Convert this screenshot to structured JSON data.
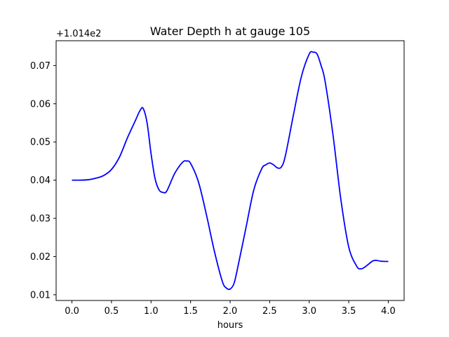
{
  "chart_data": {
    "type": "line",
    "title": "Water Depth h at gauge 105",
    "xlabel": "hours",
    "ylabel": "",
    "offset_label": "+1.014e2",
    "xlim": [
      -0.2,
      4.2
    ],
    "ylim": [
      0.0085,
      0.0765
    ],
    "x_ticks": [
      0.0,
      0.5,
      1.0,
      1.5,
      2.0,
      2.5,
      3.0,
      3.5,
      4.0
    ],
    "x_tick_labels": [
      "0.0",
      "0.5",
      "1.0",
      "1.5",
      "2.0",
      "2.5",
      "3.0",
      "3.5",
      "4.0"
    ],
    "y_ticks": [
      0.01,
      0.02,
      0.03,
      0.04,
      0.05,
      0.06,
      0.07
    ],
    "y_tick_labels": [
      "0.01",
      "0.02",
      "0.03",
      "0.04",
      "0.05",
      "0.06",
      "0.07"
    ],
    "grid": false,
    "series": [
      {
        "color": "#0000ff",
        "x": [
          0.0,
          0.1,
          0.2,
          0.3,
          0.4,
          0.5,
          0.6,
          0.7,
          0.8,
          0.86,
          0.9,
          0.95,
          1.0,
          1.05,
          1.1,
          1.15,
          1.2,
          1.3,
          1.4,
          1.45,
          1.5,
          1.6,
          1.7,
          1.8,
          1.9,
          1.95,
          2.0,
          2.05,
          2.1,
          2.2,
          2.3,
          2.4,
          2.45,
          2.5,
          2.55,
          2.6,
          2.65,
          2.7,
          2.8,
          2.9,
          3.0,
          3.05,
          3.1,
          3.15,
          3.2,
          3.3,
          3.4,
          3.5,
          3.6,
          3.65,
          3.7,
          3.8,
          3.85,
          3.9,
          4.0
        ],
        "y": [
          0.04,
          0.04,
          0.0401,
          0.0405,
          0.0412,
          0.0428,
          0.046,
          0.051,
          0.0555,
          0.0582,
          0.0588,
          0.055,
          0.047,
          0.0405,
          0.0375,
          0.0368,
          0.0372,
          0.0418,
          0.0447,
          0.045,
          0.0444,
          0.0395,
          0.031,
          0.0215,
          0.0136,
          0.0118,
          0.0115,
          0.013,
          0.0175,
          0.0275,
          0.0375,
          0.043,
          0.044,
          0.0445,
          0.044,
          0.0432,
          0.0435,
          0.0465,
          0.057,
          0.067,
          0.073,
          0.0735,
          0.073,
          0.07,
          0.066,
          0.052,
          0.035,
          0.0225,
          0.0175,
          0.0168,
          0.0172,
          0.0188,
          0.019,
          0.0188,
          0.0187
        ]
      }
    ]
  }
}
